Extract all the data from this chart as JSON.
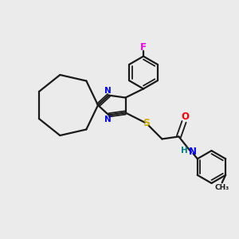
{
  "background_color": "#ebebeb",
  "bond_color": "#1a1a1a",
  "N_color": "#0000ff",
  "S_color": "#ccaa00",
  "O_color": "#ff0000",
  "F_color": "#ee00ee",
  "H_color": "#008080",
  "figsize": [
    3.0,
    3.0
  ],
  "dpi": 100,
  "xlim": [
    0,
    10
  ],
  "ylim": [
    0,
    10
  ]
}
